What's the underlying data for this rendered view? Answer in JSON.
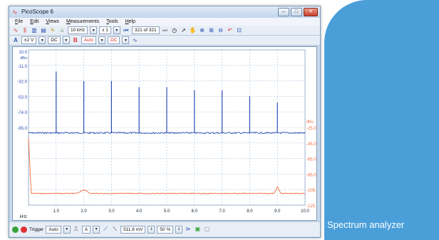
{
  "window": {
    "title": "PicoScope 6"
  },
  "menu": [
    "File",
    "Edit",
    "Views",
    "Measurements",
    "Tools",
    "Help"
  ],
  "toolbar1": {
    "timebase": "10 kHz",
    "zoom": "x 1",
    "capture_counter": "321 of 321"
  },
  "toolbar2": {
    "channel_a_label": "A",
    "range": "±2 V",
    "coupling_a": "DC",
    "channel_b_label": "B",
    "range_b": "Auto",
    "coupling_b": "DC"
  },
  "scope": {
    "left_unit": "dBu",
    "left_ticks": [
      "10.0",
      "-11.0",
      "-32.0",
      "-53.0",
      "-74.0",
      "-95.0"
    ],
    "right_unit": "dBu",
    "right_ticks": [
      "-25.0",
      "-45.0",
      "-65.0",
      "-85.0",
      "-105.0",
      "-125.0"
    ],
    "x_ticks": [
      "1.0",
      "2.0",
      "3.0",
      "4.0",
      "5.0",
      "6.0",
      "7.0",
      "8.0",
      "9.0",
      "10.0"
    ],
    "x_axis_label": "kHz"
  },
  "colors": {
    "channel_a": "#2a4fb5",
    "channel_b": "#f06a3c",
    "grid": "#a9c3e0",
    "panel_blue": "#4a9fd9"
  },
  "status": {
    "trigger_label": "Trigger",
    "trigger_mode": "Auto",
    "trigger_channel": "A",
    "threshold": "511.8 mV",
    "pretrigger": "50 %"
  },
  "caption": "Spectrum analyzer"
}
